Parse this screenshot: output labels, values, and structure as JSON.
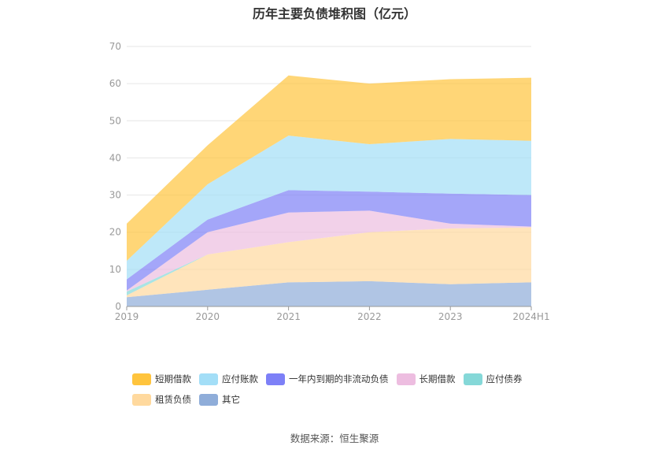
{
  "chart_data": {
    "type": "area",
    "stacked": true,
    "title": "历年主要负债堆积图（亿元）",
    "categories": [
      "2019",
      "2020",
      "2021",
      "2022",
      "2023",
      "2024H1"
    ],
    "y_ticks": [
      "0",
      "10",
      "20",
      "30",
      "40",
      "50",
      "60",
      "70"
    ],
    "ylim": [
      0,
      70
    ],
    "grid": true,
    "legend_position": "bottom",
    "series": [
      {
        "name": "其它",
        "color": "#8fadd9",
        "values": [
          2.5,
          4.5,
          6.5,
          6.8,
          6.0,
          6.5
        ]
      },
      {
        "name": "租赁负债",
        "color": "#ffd99e",
        "values": [
          0.5,
          9.5,
          10.8,
          13.2,
          15.0,
          14.8
        ]
      },
      {
        "name": "应付债券",
        "color": "#85d8d8",
        "values": [
          1.0,
          0.0,
          0.0,
          0.0,
          0.0,
          0.0
        ]
      },
      {
        "name": "长期借款",
        "color": "#edbde0",
        "values": [
          0.3,
          6.0,
          8.0,
          5.8,
          1.3,
          0.2
        ]
      },
      {
        "name": "一年内到期的非流动负债",
        "color": "#7d80f7",
        "values": [
          3.0,
          3.4,
          6.0,
          5.1,
          8.1,
          8.5
        ]
      },
      {
        "name": "应付账款",
        "color": "#a3def7",
        "values": [
          5.0,
          9.5,
          14.7,
          12.8,
          14.7,
          14.6
        ]
      },
      {
        "name": "短期借款",
        "color": "#ffc43d",
        "values": [
          10.0,
          10.5,
          16.2,
          16.3,
          16.1,
          17.0
        ]
      }
    ],
    "legend_order": [
      "短期借款",
      "应付账款",
      "一年内到期的非流动负债",
      "长期借款",
      "应付债券",
      "租赁负债",
      "其它"
    ]
  },
  "source": "数据来源：恒生聚源"
}
